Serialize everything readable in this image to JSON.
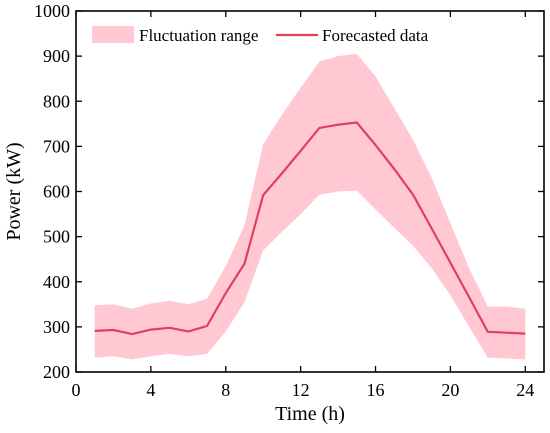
{
  "chart_data": {
    "type": "line",
    "xlabel": "Time (h)",
    "ylabel": "Power (kW)",
    "xlim": [
      0,
      25
    ],
    "ylim": [
      200,
      1000
    ],
    "xticks": [
      0,
      4,
      8,
      12,
      16,
      20,
      24
    ],
    "yticks": [
      200,
      300,
      400,
      500,
      600,
      700,
      800,
      900,
      1000
    ],
    "grid": false,
    "legend_position": "top-left",
    "colors": {
      "band": "#ffc8d2",
      "line": "#e0405e"
    },
    "series": [
      {
        "name": "Fluctuation range",
        "type": "area-band",
        "x": [
          1,
          2,
          3,
          4,
          5,
          6,
          7,
          8,
          9,
          10,
          11,
          12,
          13,
          14,
          15,
          16,
          17,
          18,
          19,
          20,
          21,
          22,
          23,
          24
        ],
        "upper": [
          348,
          350,
          340,
          352,
          358,
          350,
          362,
          435,
          525,
          705,
          770,
          830,
          888,
          900,
          905,
          855,
          785,
          715,
          630,
          530,
          430,
          345,
          345,
          340
        ],
        "lower": [
          232,
          235,
          228,
          235,
          240,
          235,
          240,
          290,
          355,
          470,
          510,
          550,
          593,
          600,
          602,
          560,
          520,
          480,
          430,
          370,
          300,
          232,
          230,
          228
        ]
      },
      {
        "name": "Forecasted data",
        "type": "line",
        "x": [
          1,
          2,
          3,
          4,
          5,
          6,
          7,
          8,
          9,
          10,
          11,
          12,
          13,
          14,
          15,
          16,
          17,
          18,
          19,
          20,
          21,
          22,
          23,
          24
        ],
        "values": [
          291,
          293,
          284,
          294,
          298,
          290,
          302,
          375,
          440,
          592,
          640,
          690,
          741,
          748,
          753,
          703,
          650,
          593,
          518,
          442,
          366,
          289,
          287,
          285
        ]
      }
    ]
  }
}
